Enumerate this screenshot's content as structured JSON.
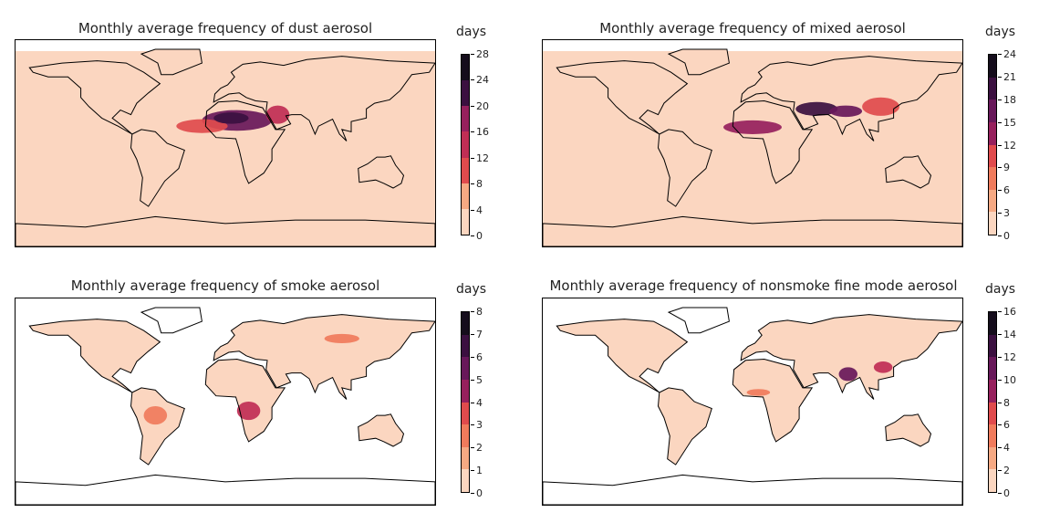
{
  "panels": [
    {
      "id": "dust",
      "title": "Monthly average frequency of dust aerosol",
      "colorbar_label": "days",
      "ticks": [
        "0",
        "4",
        "8",
        "12",
        "16",
        "20",
        "24",
        "28"
      ],
      "levels": 7,
      "background_level": 1,
      "plumes": [
        {
          "lon": 10,
          "lat": 20,
          "rx": 30,
          "ry": 9,
          "level": 6
        },
        {
          "lon": -20,
          "lat": 15,
          "rx": 22,
          "ry": 6,
          "level": 3
        },
        {
          "lon": 45,
          "lat": 25,
          "rx": 10,
          "ry": 8,
          "level": 4
        },
        {
          "lon": 5,
          "lat": 22,
          "rx": 15,
          "ry": 5,
          "level": 7
        }
      ]
    },
    {
      "id": "mixed",
      "title": "Monthly average frequency of mixed aerosol",
      "colorbar_label": "days",
      "ticks": [
        "0",
        "3",
        "6",
        "9",
        "12",
        "15",
        "18",
        "21",
        "24"
      ],
      "levels": 8,
      "background_level": 1,
      "plumes": [
        {
          "lon": 0,
          "lat": 14,
          "rx": 25,
          "ry": 6,
          "level": 5
        },
        {
          "lon": 55,
          "lat": 30,
          "rx": 18,
          "ry": 6,
          "level": 7
        },
        {
          "lon": 80,
          "lat": 28,
          "rx": 14,
          "ry": 5,
          "level": 6
        },
        {
          "lon": 110,
          "lat": 32,
          "rx": 16,
          "ry": 8,
          "level": 3
        }
      ]
    },
    {
      "id": "smoke",
      "title": "Monthly average frequency of smoke aerosol",
      "colorbar_label": "days",
      "ticks": [
        "0",
        "1",
        "2",
        "3",
        "4",
        "5",
        "6",
        "7",
        "8"
      ],
      "levels": 8,
      "background_level": 0,
      "plumes": [
        {
          "lon": 20,
          "lat": -8,
          "rx": 10,
          "ry": 8,
          "level": 4
        },
        {
          "lon": -60,
          "lat": -12,
          "rx": 10,
          "ry": 8,
          "level": 2
        },
        {
          "lon": 100,
          "lat": 55,
          "rx": 15,
          "ry": 4,
          "level": 2
        }
      ]
    },
    {
      "id": "nonsmoke-fine",
      "title": "Monthly average frequency of nonsmoke fine mode aerosol",
      "colorbar_label": "days",
      "ticks": [
        "0",
        "2",
        "4",
        "6",
        "8",
        "10",
        "12",
        "14",
        "16"
      ],
      "levels": 8,
      "background_level": 0,
      "plumes": [
        {
          "lon": 82,
          "lat": 24,
          "rx": 8,
          "ry": 6,
          "level": 6
        },
        {
          "lon": 112,
          "lat": 30,
          "rx": 8,
          "ry": 5,
          "level": 4
        },
        {
          "lon": 5,
          "lat": 8,
          "rx": 10,
          "ry": 3,
          "level": 2
        }
      ]
    }
  ],
  "palette": [
    "#fbd6c0",
    "#f6a983",
    "#f07b5c",
    "#e04b4d",
    "#c02e55",
    "#96205d",
    "#68185a",
    "#3b1040",
    "#150d1c"
  ],
  "land_color": "#f8d1b8",
  "ocean_fill": "#f8d1b8"
}
